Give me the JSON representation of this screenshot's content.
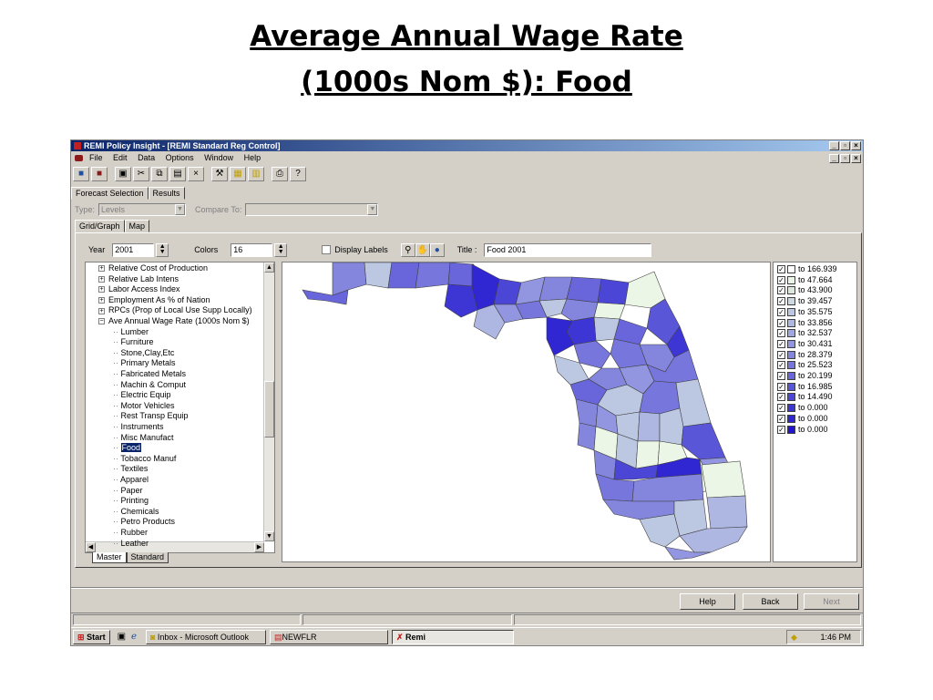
{
  "slide": {
    "title_line1": "Average Annual Wage Rate",
    "title_line2": "(1000s Nom $): Food"
  },
  "window": {
    "title": "REMI Policy Insight - [REMI Standard Reg Control]",
    "min_glyph": "_",
    "max_glyph": "▫",
    "close_glyph": "×"
  },
  "menu": [
    "File",
    "Edit",
    "Data",
    "Options",
    "Window",
    "Help"
  ],
  "toolbar_icons": [
    "open-icon",
    "close-folder-icon",
    "save-icon",
    "cut-icon",
    "copy-icon",
    "paste-icon",
    "delete-icon",
    "run-icon",
    "table-icon",
    "chart-icon",
    "print-icon",
    "help-icon"
  ],
  "tabs": {
    "forecast": "Forecast Selection",
    "results": "Results"
  },
  "typerow": {
    "type_label": "Type:",
    "type_value": "Levels",
    "compare_label": "Compare To:",
    "compare_value": ""
  },
  "subtabs": {
    "grid": "Grid/Graph",
    "map": "Map"
  },
  "controls": {
    "year_label": "Year",
    "year_value": "2001",
    "colors_label": "Colors",
    "colors_value": "16",
    "display_labels": "Display Labels",
    "title_label": "Title :",
    "title_value": "Food  2001"
  },
  "tree": {
    "parents": [
      "Relative Cost of Production",
      "Relative Lab Intens",
      "Labor Access Index",
      "Employment As % of Nation",
      "RPCs (Prop of Local Use Supp Locally)",
      "Ave Annual Wage Rate (1000s Nom $)"
    ],
    "children": [
      "Lumber",
      "Furniture",
      "Stone,Clay,Etc",
      "Primary Metals",
      "Fabricated Metals",
      "Machin & Comput",
      "Electric Equip",
      "Motor Vehicles",
      "Rest Transp Equip",
      "Instruments",
      "Misc Manufact",
      "Food",
      "Tobacco Manuf",
      "Textiles",
      "Apparel",
      "Paper",
      "Printing",
      "Chemicals",
      "Petro Products",
      "Rubber",
      "Leather"
    ],
    "selected": "Food"
  },
  "sheet_tabs": [
    "Master",
    "Standard"
  ],
  "legend": [
    {
      "label": "to 166.939",
      "color": "#ffffff"
    },
    {
      "label": "to 47.664",
      "color": "#ecf6e6"
    },
    {
      "label": "to 43.900",
      "color": "#dde8dc"
    },
    {
      "label": "to 39.457",
      "color": "#cdd8e0"
    },
    {
      "label": "to 35.575",
      "color": "#bcc7e2"
    },
    {
      "label": "to 33.856",
      "color": "#aeb6e2"
    },
    {
      "label": "to 32.537",
      "color": "#a0a6e2"
    },
    {
      "label": "to 30.431",
      "color": "#9296e0"
    },
    {
      "label": "to 28.379",
      "color": "#8486de"
    },
    {
      "label": "to 25.523",
      "color": "#7676dc"
    },
    {
      "label": "to 20.199",
      "color": "#6866da"
    },
    {
      "label": "to 16.985",
      "color": "#5a56d8"
    },
    {
      "label": "to 14.490",
      "color": "#4c46d6"
    },
    {
      "label": "to 0.000",
      "color": "#3e36d4"
    },
    {
      "label": "to 0.000",
      "color": "#3026d2"
    },
    {
      "label": "to 0.000",
      "color": "#2214d0"
    }
  ],
  "buttons": {
    "help": "Help",
    "back": "Back",
    "next": "Next"
  },
  "taskbar": {
    "start": "Start",
    "tasks": [
      "Inbox - Microsoft Outlook",
      "NEWFLR",
      "Remi"
    ],
    "clock": "1:46 PM"
  }
}
